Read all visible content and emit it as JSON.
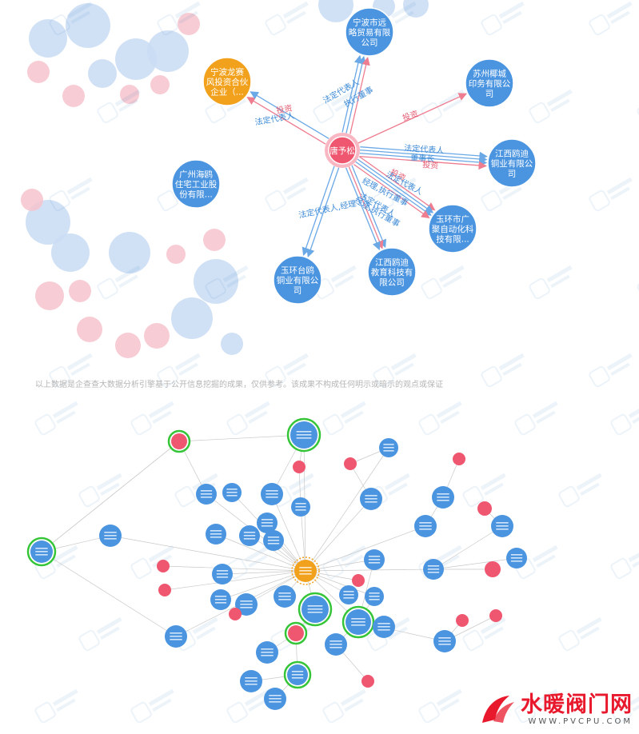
{
  "top_graph": {
    "center": {
      "id": "c",
      "label": [
        "唐予松"
      ],
      "color": "#ef5770"
    },
    "nodes": [
      {
        "id": "n1",
        "label": [
          "宁波市远",
          "略贸易有限",
          "公司"
        ],
        "color": "#4a94e0"
      },
      {
        "id": "n2",
        "label": [
          "苏州椰城",
          "印务有限公",
          "司"
        ],
        "color": "#4a94e0"
      },
      {
        "id": "n3",
        "label": [
          "宁波龙赛",
          "风投资合伙",
          "企业（..."
        ],
        "color": "#f2a11d"
      },
      {
        "id": "n4",
        "label": [
          "江西鸥迪",
          "铜业有限公",
          "司"
        ],
        "color": "#4a94e0"
      },
      {
        "id": "n5",
        "label": [
          "广州海鸥",
          "住宅工业股",
          "份有限..."
        ],
        "color": "#4a94e0"
      },
      {
        "id": "n6",
        "label": [
          "玉环市广",
          "聚自动化科",
          "技有限..."
        ],
        "color": "#4a94e0"
      },
      {
        "id": "n7",
        "label": [
          "江西鸥迪",
          "教育科技有",
          "限公司"
        ],
        "color": "#4a94e0"
      },
      {
        "id": "n8",
        "label": [
          "玉环台鸥",
          "铜业有限公",
          "司"
        ],
        "color": "#4a94e0"
      }
    ],
    "edge_labels": [
      {
        "text": "法定代表人",
        "color": "#3d8ad6"
      },
      {
        "text": "执行董事",
        "color": "#3d8ad6"
      },
      {
        "text": "投资",
        "color": "#e35b72"
      },
      {
        "text": "投资",
        "color": "#e35b72"
      },
      {
        "text": "法定代表人",
        "color": "#3d8ad6"
      },
      {
        "text": "法定代表人",
        "color": "#3d8ad6"
      },
      {
        "text": "董事长",
        "color": "#3d8ad6"
      },
      {
        "text": "投资",
        "color": "#e35b72"
      },
      {
        "text": "投资",
        "color": "#e35b72"
      },
      {
        "text": "法定代表人",
        "color": "#3d8ad6"
      },
      {
        "text": "经理,执行董事",
        "color": "#3d8ad6"
      },
      {
        "text": "法定代表人",
        "color": "#3d8ad6"
      },
      {
        "text": "经理,执行董事",
        "color": "#3d8ad6"
      },
      {
        "text": "法定代表人,经理",
        "color": "#3d8ad6"
      }
    ],
    "disclaimer": "以上数据是企查查大数据分析引擎基于公开信息挖掘的成果，仅供参考。该成果不构成任何明示或暗示的观点或保证"
  },
  "brand": {
    "name": "水暖阀门网",
    "url": "WWW.PVCPU.COM"
  },
  "colors": {
    "blue": "#4a94e0",
    "red": "#ef5770",
    "orange": "#f2a11d",
    "green": "#36c538",
    "faded_blue": "#c9dcf3",
    "faded_red": "#f6c3cc"
  }
}
